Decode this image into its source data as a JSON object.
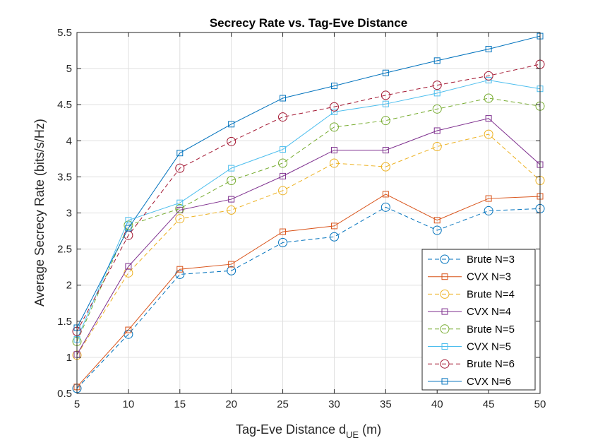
{
  "chart_data": {
    "type": "line",
    "title": "Secrecy Rate vs. Tag-Eve Distance",
    "xlabel": {
      "main": "Tag-Eve Distance d",
      "subscript": "UE",
      "suffix": " (m)"
    },
    "ylabel": "Average Secrecy Rate (bits/s/Hz)",
    "xlim": [
      5,
      50
    ],
    "ylim": [
      0.5,
      5.5
    ],
    "xticks": [
      5,
      10,
      15,
      20,
      25,
      30,
      35,
      40,
      45,
      50
    ],
    "yticks": [
      0.5,
      1,
      1.5,
      2,
      2.5,
      3,
      3.5,
      4,
      4.5,
      5,
      5.5
    ],
    "ytick_labels": [
      "0.5",
      "1",
      "1.5",
      "2",
      "2.5",
      "3",
      "3.5",
      "4",
      "4.5",
      "5",
      "5.5"
    ],
    "grid": true,
    "legend_position": "bottom-right",
    "x": [
      5,
      10,
      15,
      20,
      25,
      30,
      35,
      40,
      45,
      50
    ],
    "series": [
      {
        "name": "Brute N=3",
        "color": "#0072BD",
        "dash": true,
        "marker": "circle",
        "values": [
          0.57,
          1.32,
          2.15,
          2.2,
          2.59,
          2.67,
          3.08,
          2.76,
          3.03,
          3.06
        ]
      },
      {
        "name": "CVX N=3",
        "color": "#D95319",
        "dash": false,
        "marker": "square",
        "values": [
          0.59,
          1.38,
          2.22,
          2.29,
          2.74,
          2.82,
          3.26,
          2.9,
          3.2,
          3.23
        ]
      },
      {
        "name": "Brute N=4",
        "color": "#EDB120",
        "dash": true,
        "marker": "circle",
        "values": [
          1.03,
          2.17,
          2.92,
          3.04,
          3.31,
          3.69,
          3.64,
          3.92,
          4.09,
          3.45
        ]
      },
      {
        "name": "CVX N=4",
        "color": "#7E2F8E",
        "dash": false,
        "marker": "square",
        "values": [
          1.04,
          2.26,
          3.04,
          3.19,
          3.51,
          3.87,
          3.87,
          4.14,
          4.31,
          3.67
        ]
      },
      {
        "name": "Brute N=5",
        "color": "#77AC30",
        "dash": true,
        "marker": "circle",
        "values": [
          1.22,
          2.83,
          3.06,
          3.45,
          3.69,
          4.19,
          4.28,
          4.44,
          4.59,
          4.48
        ]
      },
      {
        "name": "CVX N=5",
        "color": "#4DBEEE",
        "dash": false,
        "marker": "square",
        "values": [
          1.25,
          2.9,
          3.14,
          3.62,
          3.88,
          4.4,
          4.51,
          4.66,
          4.84,
          4.72
        ]
      },
      {
        "name": "Brute N=6",
        "color": "#A2142F",
        "dash": true,
        "marker": "circle",
        "values": [
          1.36,
          2.69,
          3.62,
          3.99,
          4.33,
          4.47,
          4.63,
          4.77,
          4.9,
          5.06
        ]
      },
      {
        "name": "CVX N=6",
        "color": "#0072BD",
        "dash": false,
        "marker": "square",
        "values": [
          1.41,
          2.79,
          3.83,
          4.23,
          4.59,
          4.76,
          4.94,
          5.11,
          5.27,
          5.45
        ]
      }
    ]
  }
}
